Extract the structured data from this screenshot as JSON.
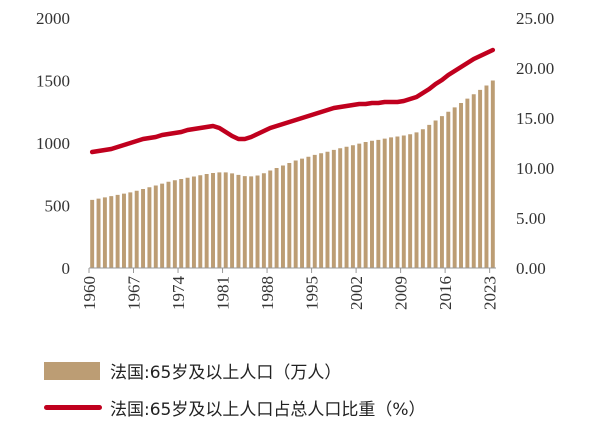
{
  "chart_data": {
    "type": "bar+line",
    "x": [
      1960,
      1961,
      1962,
      1963,
      1964,
      1965,
      1966,
      1967,
      1968,
      1969,
      1970,
      1971,
      1972,
      1973,
      1974,
      1975,
      1976,
      1977,
      1978,
      1979,
      1980,
      1981,
      1982,
      1983,
      1984,
      1985,
      1986,
      1987,
      1988,
      1989,
      1990,
      1991,
      1992,
      1993,
      1994,
      1995,
      1996,
      1997,
      1998,
      1999,
      2000,
      2001,
      2002,
      2003,
      2004,
      2005,
      2006,
      2007,
      2008,
      2009,
      2010,
      2011,
      2012,
      2013,
      2014,
      2015,
      2016,
      2017,
      2018,
      2019,
      2020,
      2021,
      2022,
      2023
    ],
    "x_tick_labels": [
      "1960",
      "1967",
      "1974",
      "1981",
      "1988",
      "1995",
      "2002",
      "2009",
      "2016",
      "2023"
    ],
    "y_left_ticks": [
      "0",
      "500",
      "1000",
      "1500",
      "2000"
    ],
    "y_right_ticks": [
      "0.00",
      "5.00",
      "10.00",
      "15.00",
      "20.00",
      "25.00"
    ],
    "ylim_left": [
      0,
      2000
    ],
    "ylim_right": [
      0,
      25
    ],
    "series": [
      {
        "name": "法国:65岁及以上人口（万人）",
        "type": "bar",
        "axis": "left",
        "color": "#BC9D74",
        "values": [
          545,
          555,
          565,
          575,
          585,
          595,
          605,
          618,
          632,
          646,
          660,
          675,
          690,
          702,
          712,
          722,
          732,
          742,
          752,
          760,
          765,
          765,
          757,
          745,
          735,
          733,
          740,
          758,
          780,
          800,
          820,
          840,
          860,
          875,
          890,
          905,
          918,
          930,
          945,
          958,
          970,
          982,
          995,
          1008,
          1018,
          1025,
          1035,
          1045,
          1052,
          1060,
          1070,
          1085,
          1110,
          1145,
          1180,
          1215,
          1250,
          1285,
          1320,
          1355,
          1390,
          1425,
          1460,
          1500
        ]
      },
      {
        "name": "法国:65岁及以上人口占总人口比重（%）",
        "type": "line",
        "axis": "right",
        "color": "#C0001E",
        "values": [
          11.6,
          11.7,
          11.8,
          11.9,
          12.1,
          12.3,
          12.5,
          12.7,
          12.9,
          13.0,
          13.1,
          13.3,
          13.4,
          13.5,
          13.6,
          13.8,
          13.9,
          14.0,
          14.1,
          14.2,
          14.0,
          13.6,
          13.2,
          12.9,
          12.9,
          13.1,
          13.4,
          13.7,
          14.0,
          14.2,
          14.4,
          14.6,
          14.8,
          15.0,
          15.2,
          15.4,
          15.6,
          15.8,
          16.0,
          16.1,
          16.2,
          16.3,
          16.4,
          16.4,
          16.5,
          16.5,
          16.6,
          16.6,
          16.6,
          16.7,
          16.9,
          17.1,
          17.5,
          17.9,
          18.4,
          18.8,
          19.3,
          19.7,
          20.1,
          20.5,
          20.9,
          21.2,
          21.5,
          21.8
        ]
      }
    ],
    "legend_position": "bottom",
    "grid": false
  },
  "legend": {
    "bar_label": "法国:65岁及以上人口（万人）",
    "line_label": "法国:65岁及以上人口占总人口比重（%）"
  }
}
